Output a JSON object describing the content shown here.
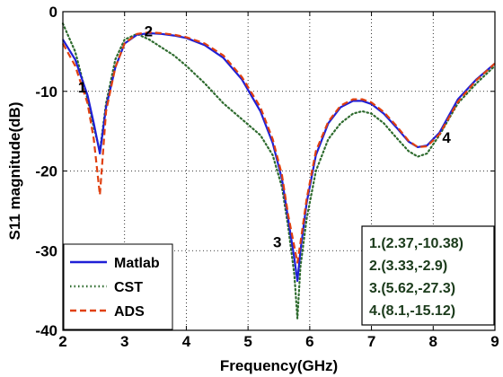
{
  "chart_data": {
    "type": "line",
    "xlabel": "Frequency(GHz)",
    "ylabel": "S11 magnitude(dB)",
    "xlim": [
      2,
      9
    ],
    "ylim": [
      -40,
      0
    ],
    "xticks": [
      "2",
      "3",
      "4",
      "5",
      "6",
      "7",
      "8",
      "9"
    ],
    "yticks": [
      "0",
      "-10",
      "-20",
      "-30",
      "-40"
    ],
    "grid": true,
    "legend_position": "bottom-left",
    "series": [
      {
        "name": "Matlab",
        "color": "#1f1fd6",
        "style": "solid",
        "x": [
          2.0,
          2.2,
          2.4,
          2.5,
          2.6,
          2.7,
          2.85,
          3.0,
          3.2,
          3.4,
          3.6,
          3.8,
          4.0,
          4.3,
          4.6,
          4.9,
          5.2,
          5.4,
          5.55,
          5.65,
          5.75,
          5.8,
          5.85,
          5.95,
          6.1,
          6.3,
          6.5,
          6.7,
          6.85,
          7.0,
          7.2,
          7.4,
          7.6,
          7.75,
          7.9,
          8.1,
          8.4,
          8.7,
          9.0
        ],
        "y": [
          -3.5,
          -6.0,
          -10.5,
          -14.0,
          -17.8,
          -12.0,
          -7.0,
          -4.0,
          -2.9,
          -2.7,
          -2.8,
          -3.0,
          -3.3,
          -4.2,
          -5.8,
          -8.5,
          -12.5,
          -16.5,
          -21.0,
          -26.0,
          -31.0,
          -33.8,
          -30.0,
          -24.0,
          -18.0,
          -14.0,
          -12.0,
          -11.2,
          -11.2,
          -11.6,
          -12.8,
          -14.5,
          -16.3,
          -17.0,
          -16.8,
          -15.2,
          -11.0,
          -8.5,
          -6.5
        ]
      },
      {
        "name": "CST",
        "color": "#2e6b2e",
        "style": "dotted",
        "x": [
          2.0,
          2.2,
          2.4,
          2.5,
          2.6,
          2.7,
          2.85,
          3.0,
          3.2,
          3.4,
          3.6,
          3.8,
          4.0,
          4.3,
          4.6,
          4.9,
          5.2,
          5.4,
          5.55,
          5.65,
          5.75,
          5.8,
          5.85,
          5.95,
          6.1,
          6.3,
          6.5,
          6.7,
          6.85,
          7.0,
          7.2,
          7.4,
          7.6,
          7.75,
          7.9,
          8.1,
          8.4,
          8.7,
          9.0
        ],
        "y": [
          -1.5,
          -5.0,
          -11.0,
          -14.5,
          -17.5,
          -11.5,
          -6.0,
          -3.5,
          -2.8,
          -3.5,
          -4.5,
          -5.5,
          -6.8,
          -9.0,
          -11.5,
          -13.5,
          -15.5,
          -18.0,
          -22.0,
          -27.0,
          -33.0,
          -38.5,
          -32.0,
          -26.0,
          -20.0,
          -16.0,
          -14.0,
          -12.8,
          -12.5,
          -12.8,
          -14.0,
          -15.8,
          -17.5,
          -18.2,
          -17.8,
          -15.5,
          -11.5,
          -9.0,
          -6.8
        ]
      },
      {
        "name": "ADS",
        "color": "#e04010",
        "style": "dashed",
        "x": [
          2.0,
          2.2,
          2.4,
          2.5,
          2.6,
          2.7,
          2.85,
          3.0,
          3.2,
          3.4,
          3.6,
          3.8,
          4.0,
          4.3,
          4.6,
          4.9,
          5.2,
          5.4,
          5.55,
          5.65,
          5.75,
          5.8,
          5.85,
          5.95,
          6.1,
          6.3,
          6.5,
          6.7,
          6.85,
          7.0,
          7.2,
          7.4,
          7.6,
          7.75,
          7.9,
          8.1,
          8.4,
          8.7,
          9.0
        ],
        "y": [
          -4.0,
          -6.8,
          -11.5,
          -16.0,
          -23.0,
          -12.5,
          -7.0,
          -4.0,
          -2.8,
          -2.6,
          -2.7,
          -2.9,
          -3.2,
          -4.0,
          -5.5,
          -8.2,
          -12.0,
          -16.0,
          -20.5,
          -25.5,
          -29.5,
          -31.5,
          -29.0,
          -23.5,
          -17.5,
          -13.8,
          -11.8,
          -11.0,
          -11.0,
          -11.4,
          -12.6,
          -14.3,
          -16.2,
          -17.0,
          -16.9,
          -15.4,
          -11.3,
          -8.6,
          -6.5
        ]
      }
    ],
    "markers": [
      {
        "label": "1",
        "x": 2.37,
        "y": -10.38
      },
      {
        "label": "2",
        "x": 3.33,
        "y": -2.9
      },
      {
        "label": "3",
        "x": 5.62,
        "y": -27.3
      },
      {
        "label": "4",
        "x": 8.1,
        "y": -15.12
      }
    ],
    "annotation_box": [
      "1.(2.37,-10.38)",
      "2.(3.33,-2.9)",
      "3.(5.62,-27.3)",
      "4.(8.1,-15.12)"
    ]
  }
}
